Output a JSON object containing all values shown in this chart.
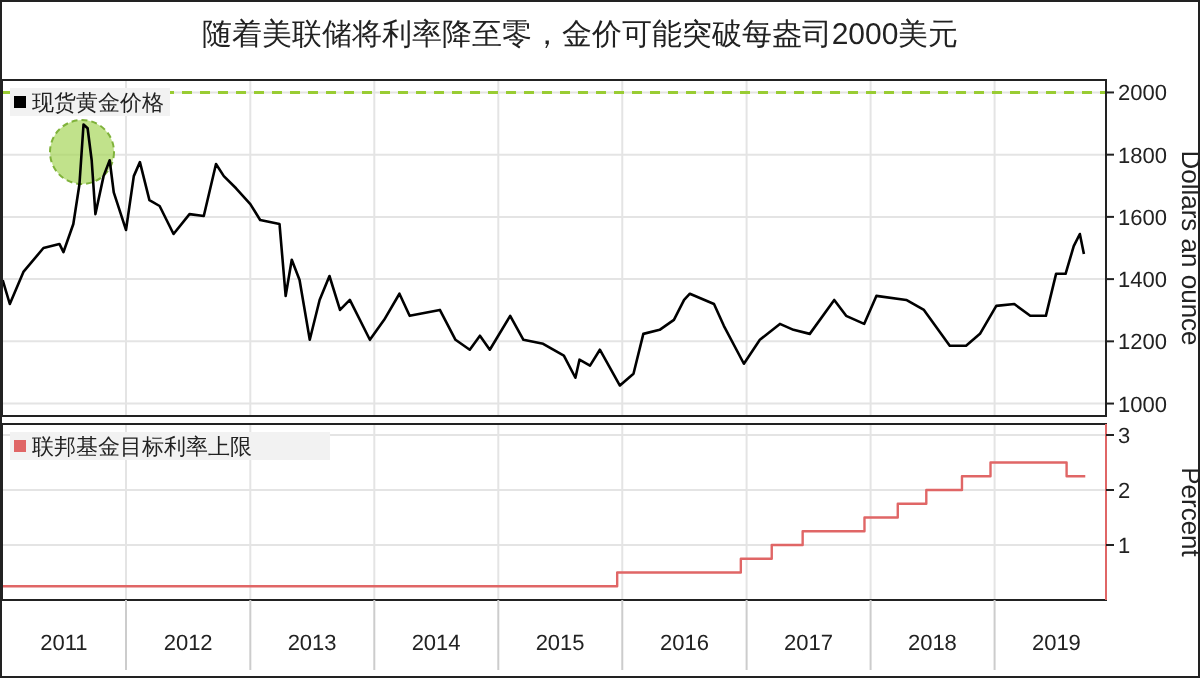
{
  "chart_data": [
    {
      "type": "line",
      "title": "随着美联储将利率降至零，金价可能突破每盎司2000美元",
      "ylabel": "Dollars an ounce",
      "legend": "top left",
      "grid": true,
      "tick_labels": "y",
      "xlim": [
        "2011-01-01",
        "2019-11-25"
      ],
      "xticks": [
        {
          "value": "2012-01-01",
          "label": null
        },
        {
          "value": "2013-01-01",
          "label": null
        },
        {
          "value": "2014-01-01",
          "label": null
        },
        {
          "value": "2015-01-01",
          "label": null
        },
        {
          "value": "2016-01-01",
          "label": null
        },
        {
          "value": "2017-01-01",
          "label": null
        },
        {
          "value": "2018-01-01",
          "label": null
        },
        {
          "value": "2019-01-01",
          "label": null
        }
      ],
      "ylim": [
        960,
        2040
      ],
      "yticks": [
        1000,
        1200,
        1400,
        1600,
        1800,
        2000
      ],
      "ref_lines": [
        {
          "axis": "y",
          "value": 2000,
          "color": "#99cc33",
          "line_style": "dashed"
        }
      ],
      "series": [
        {
          "name": "现货黄金价格",
          "color": "#000000",
          "x": [
            "2011-01-03",
            "2011-01-24",
            "2011-03-05",
            "2011-05-03",
            "2011-06-19",
            "2011-07-01",
            "2011-07-30",
            "2011-08-17",
            "2011-08-29",
            "2011-09-10",
            "2011-09-22",
            "2011-10-03",
            "2011-10-27",
            "2011-11-14",
            "2011-11-26",
            "2012-01-01",
            "2012-01-24",
            "2012-02-11",
            "2012-03-10",
            "2012-04-09",
            "2012-05-20",
            "2012-07-06",
            "2012-08-17",
            "2012-09-22",
            "2012-10-15",
            "2012-11-20",
            "2013-01-01",
            "2013-01-30",
            "2013-03-28",
            "2013-04-15",
            "2013-05-03",
            "2013-05-26",
            "2013-06-25",
            "2013-07-24",
            "2013-08-22",
            "2013-09-22",
            "2013-10-21",
            "2013-12-19",
            "2014-01-30",
            "2014-03-16",
            "2014-04-15",
            "2014-07-13",
            "2014-08-28",
            "2014-10-09",
            "2014-11-08",
            "2014-12-07",
            "2015-02-05",
            "2015-03-16",
            "2015-05-13",
            "2015-07-13",
            "2015-08-16",
            "2015-08-28",
            "2015-09-28",
            "2015-10-27",
            "2015-12-25",
            "2016-02-03",
            "2016-03-03",
            "2016-04-20",
            "2016-06-01",
            "2016-07-01",
            "2016-07-18",
            "2016-09-27",
            "2016-10-26",
            "2016-12-24",
            "2017-02-09",
            "2017-04-09",
            "2017-05-19",
            "2017-07-06",
            "2017-09-16",
            "2017-10-21",
            "2017-12-13",
            "2018-01-18",
            "2018-04-16",
            "2018-06-07",
            "2018-08-22",
            "2018-10-09",
            "2018-11-19",
            "2019-01-06",
            "2019-02-28",
            "2019-04-16",
            "2019-06-01",
            "2019-07-01",
            "2019-07-29",
            "2019-08-22",
            "2019-09-09",
            "2019-09-21"
          ],
          "values": [
            1397,
            1320,
            1423,
            1500,
            1513,
            1487,
            1577,
            1705,
            1897,
            1885,
            1782,
            1609,
            1731,
            1782,
            1679,
            1558,
            1731,
            1776,
            1654,
            1635,
            1545,
            1609,
            1603,
            1770,
            1731,
            1692,
            1641,
            1590,
            1577,
            1346,
            1462,
            1397,
            1205,
            1333,
            1410,
            1301,
            1333,
            1205,
            1269,
            1353,
            1282,
            1301,
            1205,
            1173,
            1218,
            1173,
            1282,
            1205,
            1192,
            1154,
            1083,
            1141,
            1122,
            1173,
            1058,
            1096,
            1224,
            1237,
            1269,
            1333,
            1353,
            1320,
            1250,
            1128,
            1205,
            1256,
            1237,
            1224,
            1333,
            1282,
            1256,
            1346,
            1333,
            1301,
            1186,
            1186,
            1224,
            1314,
            1320,
            1282,
            1282,
            1417,
            1417,
            1506,
            1545,
            1481
          ]
        }
      ]
    },
    {
      "type": "step",
      "legend": "top left",
      "grid": true,
      "ylabel": "Percent",
      "xlim": [
        "2011-01-01",
        "2019-11-25"
      ],
      "xticks": [
        {
          "value": "2011-07-02",
          "label": "2011"
        },
        {
          "value": "2012-01-01",
          "label": null
        },
        {
          "value": "2012-07-02",
          "label": "2012"
        },
        {
          "value": "2013-01-01",
          "label": null
        },
        {
          "value": "2013-07-02",
          "label": "2013"
        },
        {
          "value": "2014-01-01",
          "label": null
        },
        {
          "value": "2014-07-02",
          "label": "2014"
        },
        {
          "value": "2015-01-01",
          "label": null
        },
        {
          "value": "2015-07-02",
          "label": "2015"
        },
        {
          "value": "2016-01-01",
          "label": null
        },
        {
          "value": "2016-07-02",
          "label": "2016"
        },
        {
          "value": "2017-01-01",
          "label": null
        },
        {
          "value": "2017-07-02",
          "label": "2017"
        },
        {
          "value": "2018-01-01",
          "label": null
        },
        {
          "value": "2018-07-02",
          "label": "2018"
        },
        {
          "value": "2019-01-01",
          "label": null
        },
        {
          "value": "2019-07-02",
          "label": "2019"
        }
      ],
      "ylim": [
        0,
        3.2
      ],
      "yticks": [
        1,
        2,
        3
      ],
      "series": [
        {
          "name": "联邦基金目标利率上限",
          "color": "#e06666",
          "x": [
            "2011-01-01",
            "2015-12-17",
            "2016-12-15",
            "2017-03-16",
            "2017-06-15",
            "2017-12-14",
            "2018-03-22",
            "2018-06-14",
            "2018-09-27",
            "2018-12-20",
            "2019-08-01",
            "2019-09-25"
          ],
          "values": [
            0.25,
            0.5,
            0.75,
            1.0,
            1.25,
            1.5,
            1.75,
            2.0,
            2.25,
            2.5,
            2.25,
            2.25
          ]
        }
      ]
    }
  ]
}
